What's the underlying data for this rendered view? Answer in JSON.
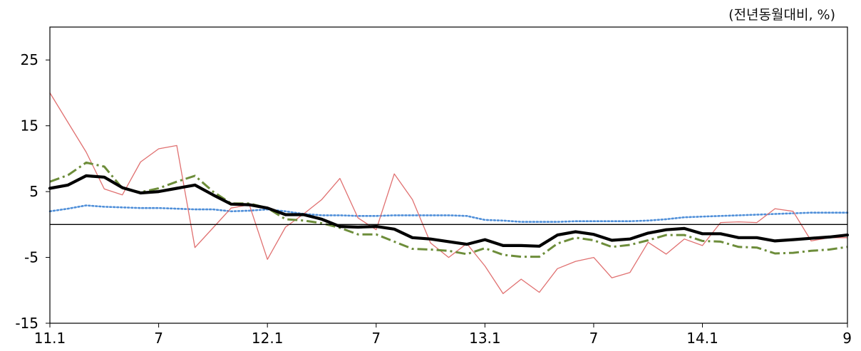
{
  "chart_data": {
    "type": "line",
    "unit_note": "(전년동월대비, %)",
    "ylim": [
      -15,
      30
    ],
    "ytick_values": [
      25,
      15,
      5,
      -5,
      -15
    ],
    "ytick_labels": [
      "25",
      "15",
      "5",
      "-5",
      "-15"
    ],
    "xtick_indices": [
      0,
      6,
      12,
      18,
      24,
      30,
      36,
      44
    ],
    "xtick_labels": [
      "11.1",
      "7",
      "12.1",
      "7",
      "13.1",
      "7",
      "14.1",
      "9"
    ],
    "grid": false,
    "x_count": 45,
    "reference_line": 0,
    "series": [
      {
        "style": "thick-black",
        "color": "#000000",
        "values": [
          5.5,
          6.0,
          7.4,
          7.2,
          5.6,
          4.8,
          5.0,
          5.5,
          6.0,
          4.5,
          3.1,
          3.0,
          2.5,
          1.5,
          1.5,
          0.8,
          -0.3,
          -0.4,
          -0.3,
          -0.7,
          -2.0,
          -2.2,
          -2.6,
          -3.0,
          -2.3,
          -3.2,
          -3.2,
          -3.3,
          -1.6,
          -1.1,
          -1.5,
          -2.4,
          -2.2,
          -1.3,
          -0.8,
          -0.6,
          -1.4,
          -1.4,
          -2.0,
          -2.0,
          -2.5,
          -2.3,
          -2.1,
          -1.9,
          -1.6
        ]
      },
      {
        "style": "dash-dot-green",
        "color": "#6d8d3a",
        "values": [
          6.5,
          7.5,
          9.4,
          8.8,
          5.5,
          4.9,
          5.5,
          6.5,
          7.4,
          5.0,
          3.2,
          3.2,
          2.5,
          0.8,
          0.6,
          0.2,
          -0.5,
          -1.5,
          -1.5,
          -2.6,
          -3.7,
          -3.8,
          -4.0,
          -4.5,
          -3.6,
          -4.6,
          -4.9,
          -4.9,
          -2.9,
          -2.0,
          -2.4,
          -3.4,
          -3.1,
          -2.4,
          -1.6,
          -1.6,
          -2.5,
          -2.6,
          -3.4,
          -3.5,
          -4.4,
          -4.3,
          -4.0,
          -3.8,
          -3.4
        ]
      },
      {
        "style": "thin-red",
        "color": "#e07070",
        "values": [
          20.0,
          15.5,
          11.0,
          5.4,
          4.5,
          9.5,
          11.5,
          12.0,
          -3.5,
          -0.5,
          2.5,
          3.0,
          -5.3,
          -0.4,
          1.6,
          3.8,
          7.0,
          1.0,
          -0.8,
          7.7,
          3.8,
          -2.8,
          -5.0,
          -2.9,
          -6.3,
          -10.5,
          -8.3,
          -10.3,
          -6.7,
          -5.6,
          -5.0,
          -8.1,
          -7.3,
          -2.7,
          -4.5,
          -2.2,
          -3.2,
          0.3,
          0.4,
          0.3,
          2.4,
          2.0,
          -2.5,
          -2.0,
          -2.0
        ]
      },
      {
        "style": "dotted-blue",
        "color": "#4f8fd9",
        "values": [
          2.0,
          2.4,
          2.9,
          2.7,
          2.6,
          2.5,
          2.5,
          2.4,
          2.3,
          2.3,
          2.0,
          2.1,
          2.3,
          2.0,
          1.6,
          1.4,
          1.4,
          1.3,
          1.3,
          1.4,
          1.4,
          1.4,
          1.4,
          1.3,
          0.7,
          0.6,
          0.4,
          0.4,
          0.4,
          0.5,
          0.5,
          0.5,
          0.5,
          0.6,
          0.8,
          1.1,
          1.2,
          1.3,
          1.4,
          1.5,
          1.6,
          1.7,
          1.8,
          1.8,
          1.8
        ]
      }
    ]
  }
}
